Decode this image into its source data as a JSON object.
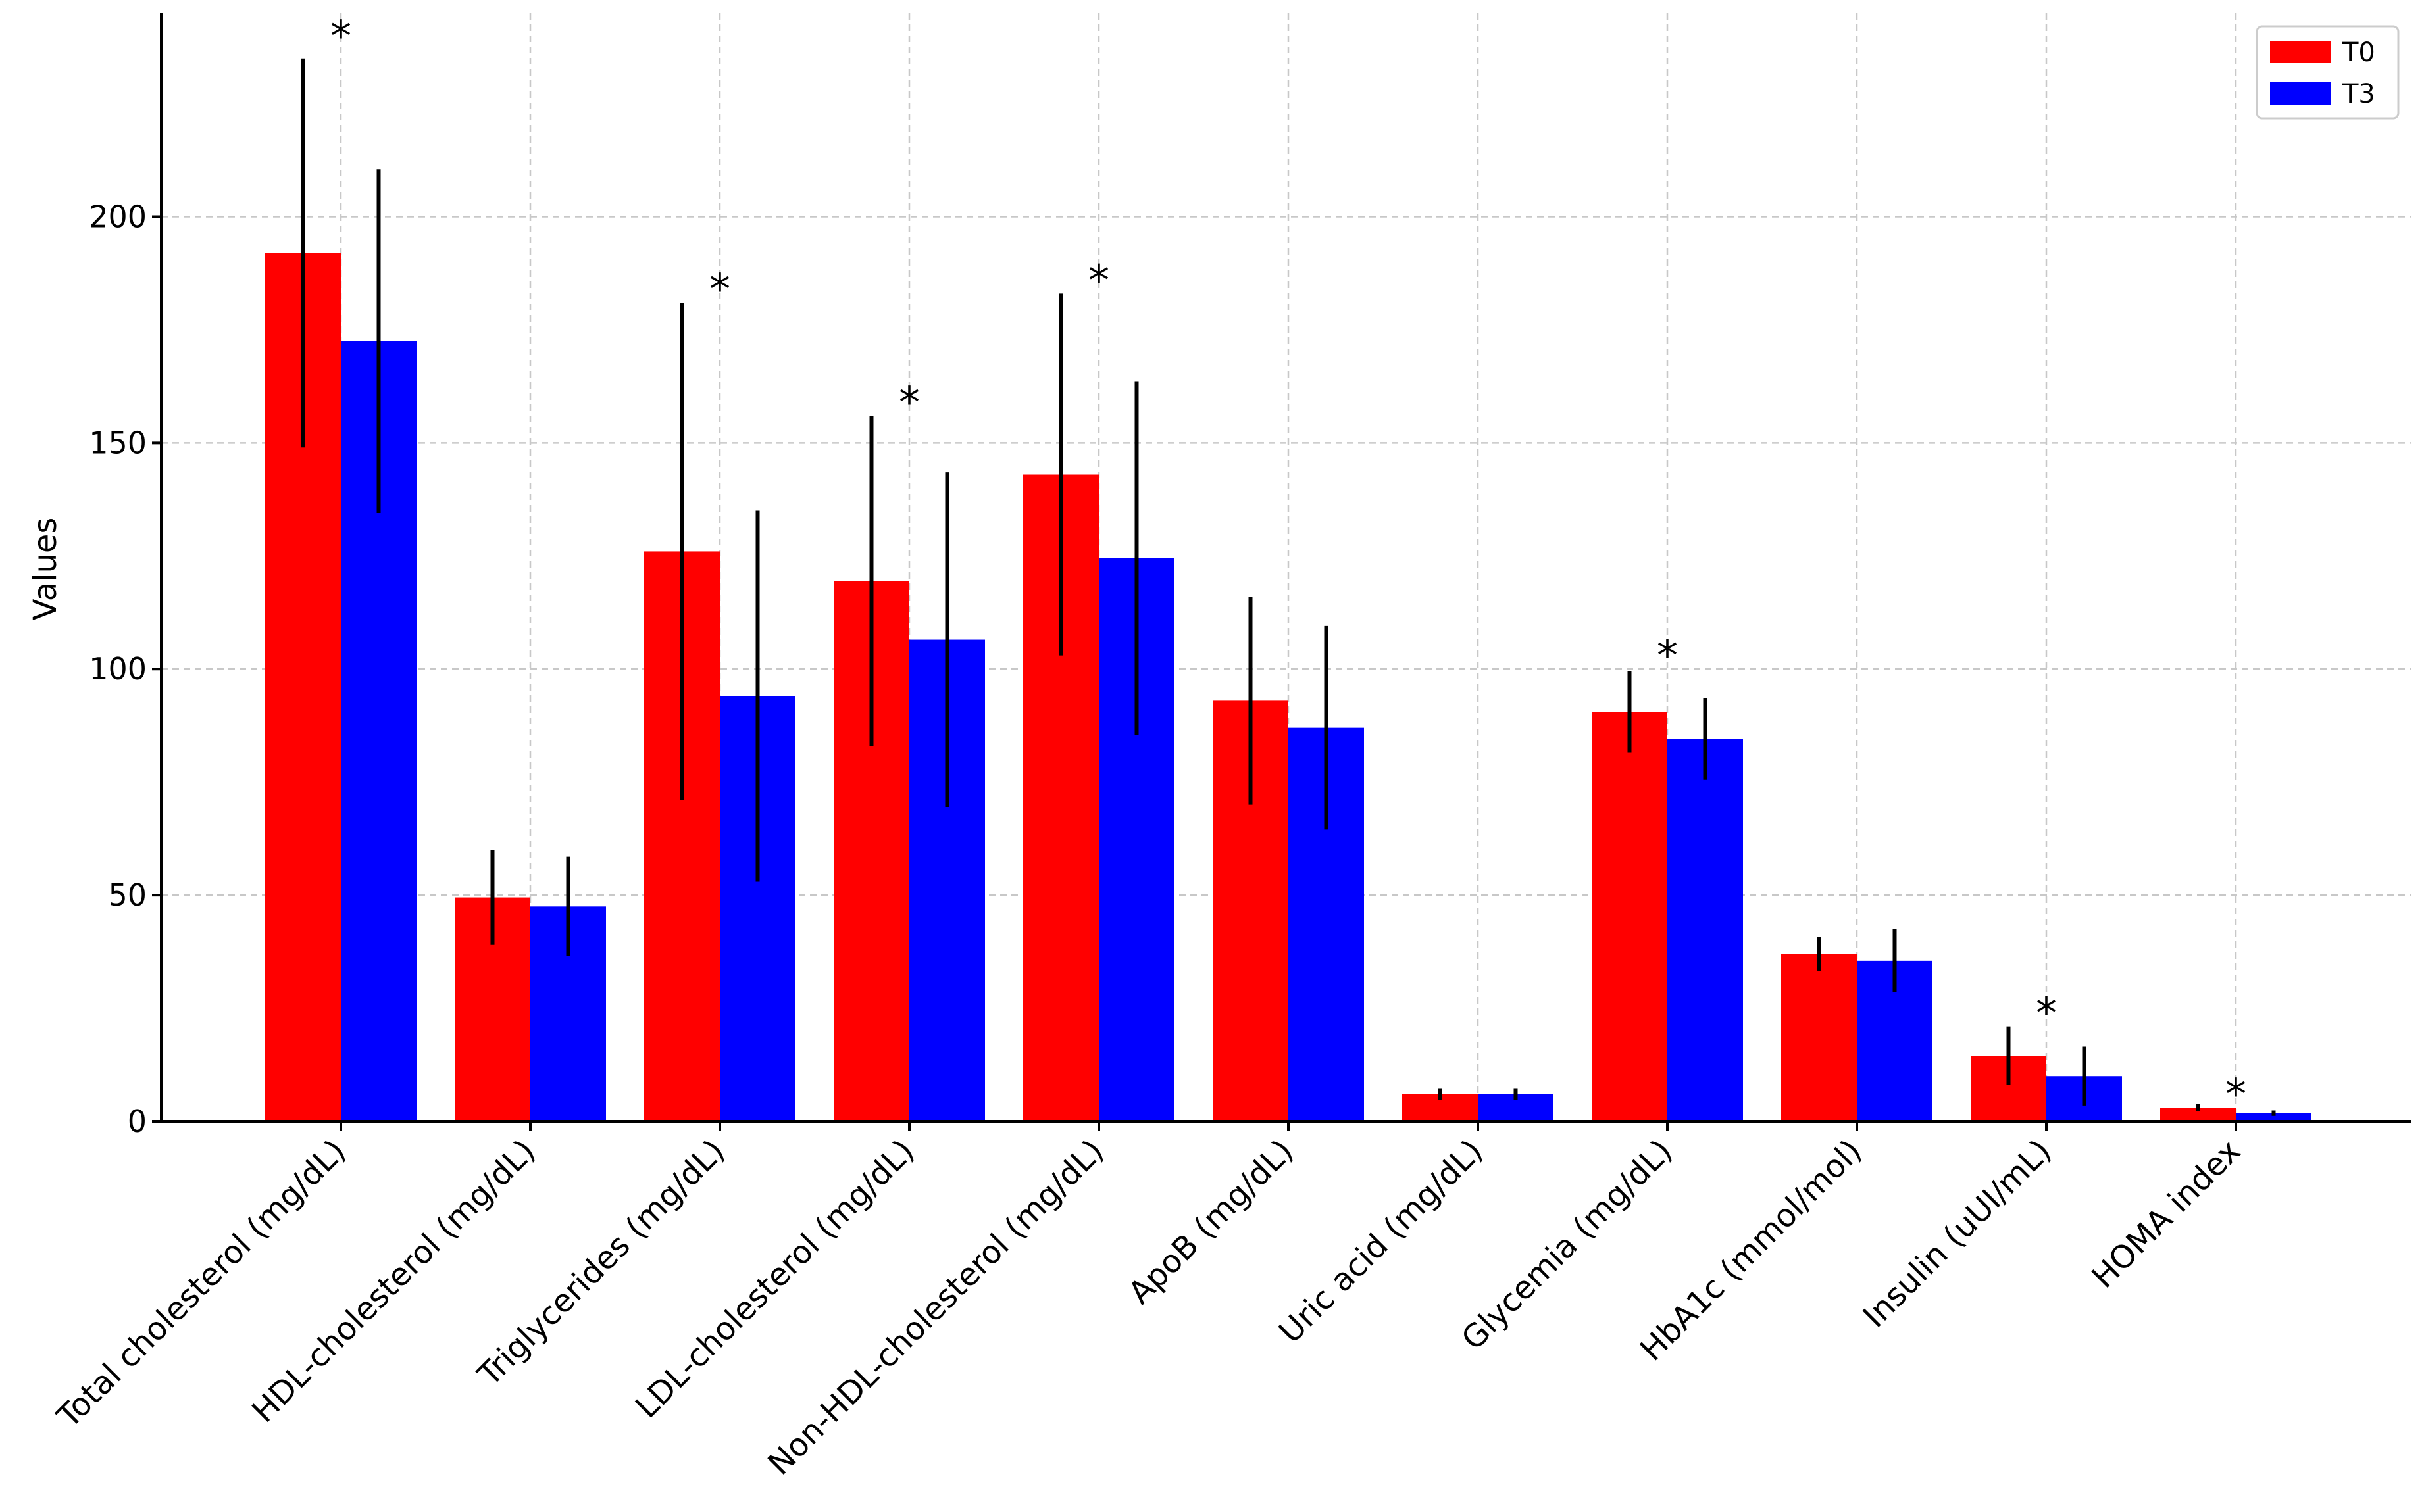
{
  "chart_data": {
    "type": "bar",
    "title": "",
    "xlabel": "",
    "ylabel": "Values",
    "ylim": [
      0,
      245
    ],
    "yticks": [
      0,
      50,
      100,
      150,
      200
    ],
    "grid": true,
    "legend_position": "top-right",
    "categories": [
      "Total cholesterol (mg/dL)",
      "HDL-cholesterol (mg/dL)",
      "Triglycerides (mg/dL)",
      "LDL-cholesterol (mg/dL)",
      "Non-HDL-cholesterol (mg/dL)",
      "ApoB (mg/dL)",
      "Uric acid (mg/dL)",
      "Glycemia (mg/dL)",
      "HbA1c (mmol/mol)",
      "Insulin (uUI/mL)",
      "HOMA index"
    ],
    "series": [
      {
        "name": "T0",
        "color": "#ff0000",
        "values": [
          192,
          49.5,
          126,
          119.5,
          143,
          93,
          6,
          90.5,
          37,
          14.5,
          3
        ],
        "errors": [
          43,
          10.5,
          55,
          36.5,
          40,
          23,
          1.2,
          9,
          3.8,
          6.5,
          0.8
        ]
      },
      {
        "name": "T3",
        "color": "#0000ff",
        "values": [
          172.5,
          47.5,
          94,
          106.5,
          124.5,
          87,
          6,
          84.5,
          35.5,
          10,
          1.8
        ],
        "errors": [
          38,
          11,
          41,
          37,
          39,
          22.5,
          1.2,
          9,
          7,
          6.5,
          0.6
        ]
      }
    ],
    "significance": [
      {
        "category_index": 0,
        "marker": "*",
        "y": 244
      },
      {
        "category_index": 2,
        "marker": "*",
        "y": 188
      },
      {
        "category_index": 3,
        "marker": "*",
        "y": 163
      },
      {
        "category_index": 4,
        "marker": "*",
        "y": 190
      },
      {
        "category_index": 7,
        "marker": "*",
        "y": 107
      },
      {
        "category_index": 9,
        "marker": "*",
        "y": 28
      },
      {
        "category_index": 10,
        "marker": "*",
        "y": 10
      }
    ]
  }
}
